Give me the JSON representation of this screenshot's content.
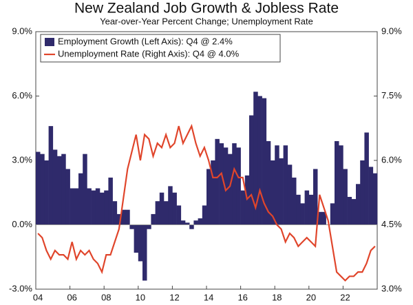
{
  "chart_data": {
    "type": "bar_line",
    "title": "New Zealand Job Growth & Jobless Rate",
    "subtitle": "Year-over-Year Percent Change; Unemployment Rate",
    "categories": [
      "04",
      null,
      null,
      null,
      null,
      null,
      null,
      null,
      "06",
      null,
      null,
      null,
      null,
      null,
      null,
      null,
      "08",
      null,
      null,
      null,
      null,
      null,
      null,
      null,
      "10",
      null,
      null,
      null,
      null,
      null,
      null,
      null,
      "12",
      null,
      null,
      null,
      null,
      null,
      null,
      null,
      "14",
      null,
      null,
      null,
      null,
      null,
      null,
      null,
      "16",
      null,
      null,
      null,
      null,
      null,
      null,
      null,
      "18",
      null,
      null,
      null,
      null,
      null,
      null,
      null,
      "20",
      null,
      null,
      null,
      null,
      null,
      null,
      null,
      "22",
      null,
      null,
      null,
      null,
      null,
      null,
      null
    ],
    "series": [
      {
        "name": "Employment Growth (Left Axis): Q4 @ 2.4%",
        "color": "#2f2a6b",
        "kind": "bar",
        "axis": "y",
        "values": [
          3.4,
          3.3,
          3.0,
          4.6,
          3.5,
          3.2,
          3.3,
          2.6,
          1.7,
          1.7,
          2.4,
          3.3,
          1.7,
          1.6,
          1.7,
          1.5,
          1.6,
          2.2,
          1.1,
          0.5,
          0.7,
          0.7,
          -0.2,
          -1.3,
          -1.7,
          -2.6,
          -0.2,
          0.5,
          1.1,
          1.5,
          1.1,
          1.8,
          1.5,
          0.9,
          0.2,
          0.1,
          -0.2,
          0.2,
          0.3,
          0.9,
          2.6,
          3.0,
          4.0,
          3.8,
          3.6,
          3.3,
          3.8,
          3.6,
          1.6,
          2.3,
          5.1,
          6.2,
          6.0,
          5.9,
          3.9,
          3.0,
          3.7,
          3.1,
          3.7,
          2.8,
          2.2,
          1.4,
          1.0,
          1.6,
          1.4,
          2.6,
          0.6,
          0.6,
          0.0,
          1.0,
          3.9,
          3.7,
          2.6,
          1.3,
          1.2,
          1.9,
          3.0,
          4.3,
          2.7,
          2.4
        ]
      },
      {
        "name": "Unemployment Rate (Right Axis): Q4 @ 4.0%",
        "color": "#e0452b",
        "kind": "line",
        "axis": "y2",
        "values": [
          4.3,
          4.2,
          3.9,
          3.7,
          3.9,
          3.8,
          3.8,
          3.7,
          4.1,
          3.7,
          3.9,
          3.8,
          3.9,
          3.7,
          3.6,
          3.4,
          3.8,
          3.8,
          4.1,
          4.4,
          5.1,
          5.8,
          6.2,
          6.6,
          6.0,
          6.6,
          6.5,
          6.1,
          6.4,
          6.3,
          6.6,
          6.3,
          6.4,
          6.8,
          6.4,
          6.6,
          6.8,
          6.4,
          6.1,
          6.3,
          6.0,
          5.6,
          5.6,
          5.7,
          5.3,
          5.4,
          5.8,
          5.6,
          5.6,
          5.1,
          5.2,
          4.9,
          5.3,
          5.0,
          4.8,
          4.7,
          4.5,
          4.4,
          4.1,
          4.3,
          4.2,
          4.0,
          4.1,
          4.2,
          4.1,
          4.0,
          5.2,
          4.9,
          4.6,
          4.0,
          3.4,
          3.3,
          3.2,
          3.3,
          3.3,
          3.4,
          3.4,
          3.6,
          3.9,
          4.0
        ]
      }
    ],
    "ylim": [
      -3,
      9
    ],
    "yticks": [
      {
        "value": -3,
        "label": "-3.0%"
      },
      {
        "value": 0,
        "label": "0.0%"
      },
      {
        "value": 3,
        "label": "3.0%"
      },
      {
        "value": 6,
        "label": "6.0%"
      },
      {
        "value": 9,
        "label": "9.0%"
      }
    ],
    "y2lim": [
      3,
      9
    ],
    "y2ticks": [
      {
        "value": 3,
        "label": "3.0%"
      },
      {
        "value": 4.5,
        "label": "4.5%"
      },
      {
        "value": 6,
        "label": "6.0%"
      },
      {
        "value": 7.5,
        "label": "7.5%"
      },
      {
        "value": 9,
        "label": "9.0%"
      }
    ],
    "legend": "top-left"
  }
}
